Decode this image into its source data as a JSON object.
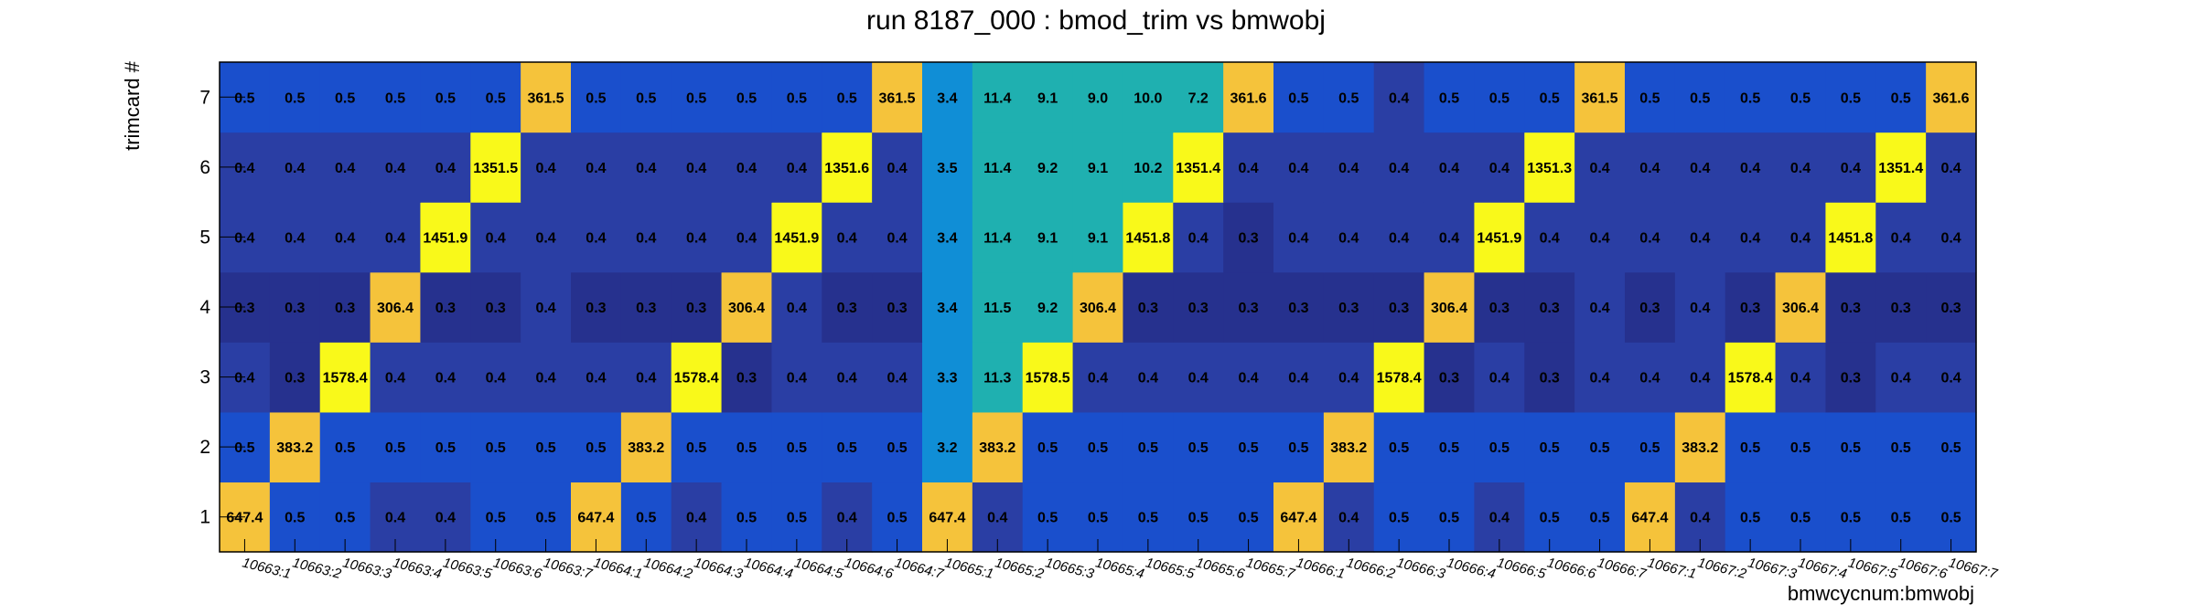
{
  "chart_data": {
    "type": "heatmap",
    "title": "run 8187_000 : bmod_trim vs bmwobj",
    "xlabel": "bmwcycnum:bmwobj",
    "ylabel": "trimcard #",
    "x_categories": [
      "10663:1",
      "10663:2",
      "10663:3",
      "10663:4",
      "10663:5",
      "10663:6",
      "10663:7",
      "10664:1",
      "10664:2",
      "10664:3",
      "10664:4",
      "10664:5",
      "10664:6",
      "10664:7",
      "10665:1",
      "10665:2",
      "10665:3",
      "10665:4",
      "10665:5",
      "10665:6",
      "10665:7",
      "10666:1",
      "10666:2",
      "10666:3",
      "10666:4",
      "10666:5",
      "10666:6",
      "10666:7",
      "10667:1",
      "10667:2",
      "10667:3",
      "10667:4",
      "10667:5",
      "10667:6",
      "10667:7"
    ],
    "y_categories": [
      "1",
      "2",
      "3",
      "4",
      "5",
      "6",
      "7"
    ],
    "values": [
      [
        "647.4",
        "0.5",
        "0.5",
        "0.4",
        "0.4",
        "0.5",
        "0.5",
        "647.4",
        "0.5",
        "0.4",
        "0.5",
        "0.5",
        "0.4",
        "0.5",
        "647.4",
        "0.4",
        "0.5",
        "0.5",
        "0.5",
        "0.5",
        "0.5",
        "647.4",
        "0.4",
        "0.5",
        "0.5",
        "0.4",
        "0.5",
        "0.5",
        "647.4",
        "0.4",
        "0.5",
        "0.5",
        "0.5",
        "0.5",
        "0.5"
      ],
      [
        "0.5",
        "383.2",
        "0.5",
        "0.5",
        "0.5",
        "0.5",
        "0.5",
        "0.5",
        "383.2",
        "0.5",
        "0.5",
        "0.5",
        "0.5",
        "0.5",
        "3.2",
        "383.2",
        "0.5",
        "0.5",
        "0.5",
        "0.5",
        "0.5",
        "0.5",
        "383.2",
        "0.5",
        "0.5",
        "0.5",
        "0.5",
        "0.5",
        "0.5",
        "383.2",
        "0.5",
        "0.5",
        "0.5",
        "0.5",
        "0.5"
      ],
      [
        "0.4",
        "0.3",
        "1578.4",
        "0.4",
        "0.4",
        "0.4",
        "0.4",
        "0.4",
        "0.4",
        "1578.4",
        "0.3",
        "0.4",
        "0.4",
        "0.4",
        "3.3",
        "11.3",
        "1578.5",
        "0.4",
        "0.4",
        "0.4",
        "0.4",
        "0.4",
        "0.4",
        "1578.4",
        "0.3",
        "0.4",
        "0.3",
        "0.4",
        "0.4",
        "0.4",
        "1578.4",
        "0.4",
        "0.3",
        "0.4",
        "0.4"
      ],
      [
        "0.3",
        "0.3",
        "0.3",
        "306.4",
        "0.3",
        "0.3",
        "0.4",
        "0.3",
        "0.3",
        "0.3",
        "306.4",
        "0.4",
        "0.3",
        "0.3",
        "3.4",
        "11.5",
        "9.2",
        "306.4",
        "0.3",
        "0.3",
        "0.3",
        "0.3",
        "0.3",
        "0.3",
        "306.4",
        "0.3",
        "0.3",
        "0.4",
        "0.3",
        "0.4",
        "0.3",
        "306.4",
        "0.3",
        "0.3",
        "0.3"
      ],
      [
        "0.4",
        "0.4",
        "0.4",
        "0.4",
        "1451.9",
        "0.4",
        "0.4",
        "0.4",
        "0.4",
        "0.4",
        "0.4",
        "1451.9",
        "0.4",
        "0.4",
        "3.4",
        "11.4",
        "9.1",
        "9.1",
        "1451.8",
        "0.4",
        "0.3",
        "0.4",
        "0.4",
        "0.4",
        "0.4",
        "1451.9",
        "0.4",
        "0.4",
        "0.4",
        "0.4",
        "0.4",
        "0.4",
        "1451.8",
        "0.4",
        "0.4"
      ],
      [
        "0.4",
        "0.4",
        "0.4",
        "0.4",
        "0.4",
        "1351.5",
        "0.4",
        "0.4",
        "0.4",
        "0.4",
        "0.4",
        "0.4",
        "1351.6",
        "0.4",
        "3.5",
        "11.4",
        "9.2",
        "9.1",
        "10.2",
        "1351.4",
        "0.4",
        "0.4",
        "0.4",
        "0.4",
        "0.4",
        "0.4",
        "1351.3",
        "0.4",
        "0.4",
        "0.4",
        "0.4",
        "0.4",
        "0.4",
        "1351.4",
        "0.4"
      ],
      [
        "0.5",
        "0.5",
        "0.5",
        "0.5",
        "0.5",
        "0.5",
        "361.5",
        "0.5",
        "0.5",
        "0.5",
        "0.5",
        "0.5",
        "0.5",
        "361.5",
        "3.4",
        "11.4",
        "9.1",
        "9.0",
        "10.0",
        "7.2",
        "361.6",
        "0.5",
        "0.5",
        "0.4",
        "0.5",
        "0.5",
        "0.5",
        "361.5",
        "0.5",
        "0.5",
        "0.5",
        "0.5",
        "0.5",
        "0.5",
        "361.6"
      ]
    ],
    "colors": {
      "v_0_3": "#26318e",
      "v_0_4": "#2a3ea4",
      "v_0_5": "#1a4fcc",
      "v_3": "#108ed6",
      "v_7_to_12": "#1fb0b0",
      "v_300_700": "#f5c33b",
      "v_1300_1600": "#f9f91a"
    },
    "grid": false,
    "legend": "none"
  }
}
